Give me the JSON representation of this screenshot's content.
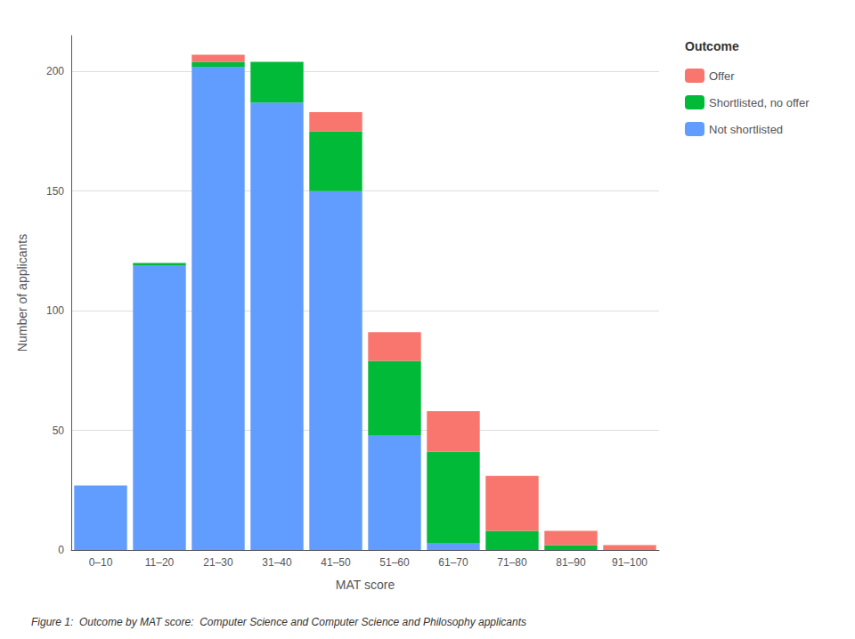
{
  "chart_data": {
    "type": "bar",
    "stacked": true,
    "xlabel": "MAT score",
    "ylabel": "Number of applicants",
    "caption": "Figure 1:  Outcome by MAT score:  Computer Science and Computer Science and Philosophy applicants",
    "legend_title": "Outcome",
    "legend": "right",
    "categories": [
      "0–10",
      "11–20",
      "21–30",
      "31–40",
      "41–50",
      "51–60",
      "61–70",
      "71–80",
      "81–90",
      "91–100"
    ],
    "series": [
      {
        "name": "Not shortlisted",
        "color": "#619CFF",
        "values": [
          27,
          119,
          202,
          187,
          150,
          48,
          3,
          0,
          0,
          0
        ]
      },
      {
        "name": "Shortlisted, no offer",
        "color": "#00BA38",
        "values": [
          0,
          1,
          2,
          17,
          25,
          31,
          38,
          8,
          2,
          0
        ]
      },
      {
        "name": "Offer",
        "color": "#F8766D",
        "values": [
          0,
          0,
          3,
          0,
          8,
          12,
          17,
          23,
          6,
          2
        ]
      }
    ],
    "ylim": [
      0,
      215
    ],
    "yticks": [
      0,
      50,
      100,
      150,
      200
    ],
    "grid": true
  }
}
